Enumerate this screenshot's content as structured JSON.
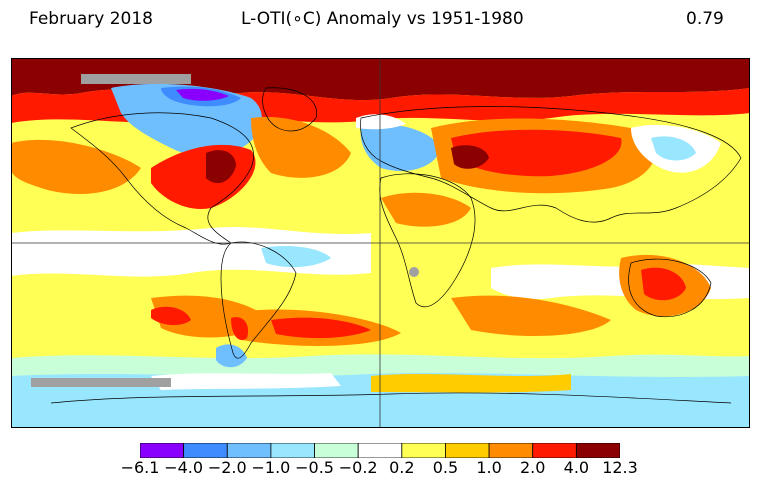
{
  "header": {
    "date": "February 2018",
    "title": "L-OTI(∘C) Anomaly vs 1951-1980",
    "mean_value": "0.79"
  },
  "legend": {
    "ticks": [
      "−6.1",
      "−4.0",
      "−2.0",
      "−1.0",
      "−0.5",
      "−0.2",
      "0.2",
      "0.5",
      "1.0",
      "2.0",
      "4.0",
      "12.3"
    ],
    "colors": [
      "#8a00ff",
      "#3f8cff",
      "#6fbfff",
      "#99e6ff",
      "#c8ffd8",
      "#ffffff",
      "#ffff55",
      "#ffcc00",
      "#ff8c00",
      "#ff1a00",
      "#8b0000"
    ]
  },
  "map_colors": {
    "no_data": "#a0a0a0",
    "coastline": "#000000",
    "gridline": "#333333"
  }
}
